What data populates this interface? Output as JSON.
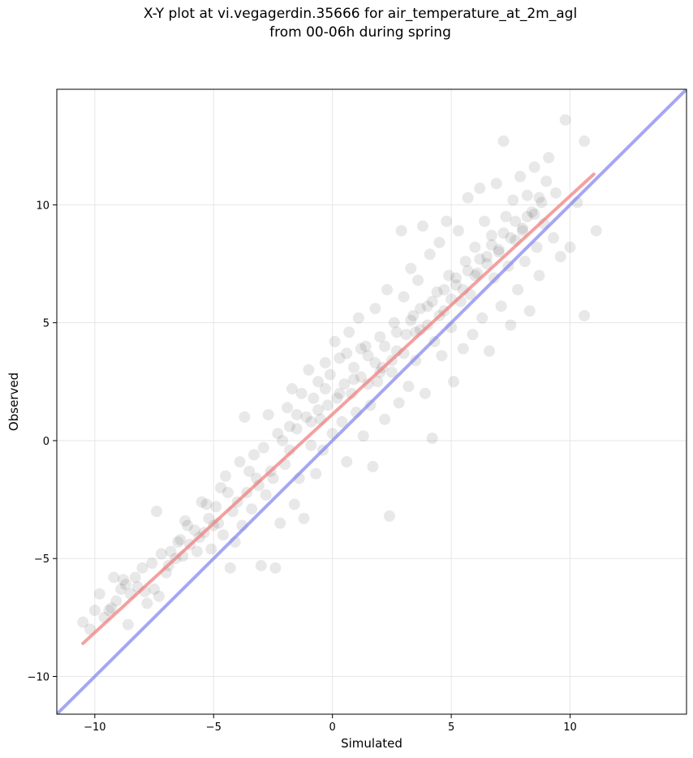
{
  "title_line1": "X-Y plot at vi.vegagerdin.35666 for air_temperature_at_2m_agl",
  "title_line2": "from 00-06h during spring",
  "chart_data": {
    "type": "scatter",
    "xlabel": "Simulated",
    "ylabel": "Observed",
    "xlim": [
      -11.6,
      14.9
    ],
    "ylim": [
      -11.6,
      14.9
    ],
    "xticks": [
      -10,
      -5,
      0,
      5,
      10
    ],
    "yticks": [
      -10,
      -5,
      0,
      5,
      10
    ],
    "xtick_labels": [
      "−10",
      "−5",
      "0",
      "5",
      "10"
    ],
    "ytick_labels": [
      "−10",
      "−5",
      "0",
      "5",
      "10"
    ],
    "grid": true,
    "colors": {
      "points": "#000000",
      "fit_line": "#f08080",
      "identity_line": "#8080f0",
      "frame": "#000000",
      "grid": "#e6e6e6"
    },
    "fit_line": {
      "x": [
        -10.5,
        11.0
      ],
      "y": [
        -8.6,
        11.3
      ]
    },
    "identity_line": {
      "x": [
        -11.6,
        14.9
      ],
      "y": [
        -11.6,
        14.9
      ]
    },
    "point_alpha": 0.09,
    "points": [
      [
        -10.5,
        -7.7
      ],
      [
        -10.2,
        -8.0
      ],
      [
        -10.0,
        -7.2
      ],
      [
        -9.8,
        -6.5
      ],
      [
        -9.6,
        -7.5
      ],
      [
        -9.4,
        -7.2
      ],
      [
        -9.2,
        -5.8
      ],
      [
        -9.1,
        -6.8
      ],
      [
        -8.9,
        -6.3
      ],
      [
        -8.7,
        -6.1
      ],
      [
        -8.6,
        -7.8
      ],
      [
        -8.5,
        -6.5
      ],
      [
        -8.3,
        -5.8
      ],
      [
        -8.2,
        -6.2
      ],
      [
        -8.0,
        -5.4
      ],
      [
        -7.8,
        -6.9
      ],
      [
        -7.6,
        -5.2
      ],
      [
        -7.5,
        -6.3
      ],
      [
        -7.4,
        -3.0
      ],
      [
        -7.2,
        -4.8
      ],
      [
        -7.0,
        -5.6
      ],
      [
        -6.8,
        -4.7
      ],
      [
        -6.6,
        -5.0
      ],
      [
        -6.5,
        -4.3
      ],
      [
        -6.3,
        -4.9
      ],
      [
        -6.1,
        -3.6
      ],
      [
        -6.0,
        -4.4
      ],
      [
        -5.8,
        -3.8
      ],
      [
        -5.6,
        -4.1
      ],
      [
        -5.5,
        -2.6
      ],
      [
        -5.4,
        -3.9
      ],
      [
        -5.2,
        -3.3
      ],
      [
        -5.1,
        -4.6
      ],
      [
        -4.9,
        -2.8
      ],
      [
        -4.8,
        -3.5
      ],
      [
        -4.6,
        -4.0
      ],
      [
        -4.5,
        -1.5
      ],
      [
        -4.4,
        -2.2
      ],
      [
        -4.3,
        -5.4
      ],
      [
        -4.2,
        -3.0
      ],
      [
        -4.0,
        -2.6
      ],
      [
        -3.9,
        -0.9
      ],
      [
        -3.8,
        -3.6
      ],
      [
        -3.7,
        1.0
      ],
      [
        -3.5,
        -1.3
      ],
      [
        -3.4,
        -2.9
      ],
      [
        -3.3,
        -0.6
      ],
      [
        -3.1,
        -1.9
      ],
      [
        -3.0,
        -5.3
      ],
      [
        -2.9,
        -0.3
      ],
      [
        -2.8,
        -2.3
      ],
      [
        -2.7,
        1.1
      ],
      [
        -2.5,
        -1.6
      ],
      [
        -2.4,
        -5.4
      ],
      [
        -2.3,
        0.3
      ],
      [
        -2.2,
        -3.5
      ],
      [
        -2.0,
        -1.0
      ],
      [
        -1.9,
        1.4
      ],
      [
        -1.8,
        -0.4
      ],
      [
        -1.7,
        2.2
      ],
      [
        -1.6,
        -2.7
      ],
      [
        -1.5,
        0.5
      ],
      [
        -1.4,
        -1.6
      ],
      [
        -1.3,
        2.0
      ],
      [
        -1.2,
        -3.3
      ],
      [
        -1.1,
        1.0
      ],
      [
        -1.0,
        3.0
      ],
      [
        -0.9,
        -0.2
      ],
      [
        -0.8,
        1.8
      ],
      [
        -0.7,
        -1.4
      ],
      [
        -0.6,
        2.5
      ],
      [
        -0.5,
        0.9
      ],
      [
        -0.4,
        -0.4
      ],
      [
        -0.3,
        3.3
      ],
      [
        -0.2,
        1.5
      ],
      [
        -0.1,
        2.8
      ],
      [
        0.0,
        0.3
      ],
      [
        0.1,
        4.2
      ],
      [
        0.2,
        1.8
      ],
      [
        0.3,
        3.5
      ],
      [
        0.4,
        0.8
      ],
      [
        0.5,
        2.4
      ],
      [
        0.6,
        -0.9
      ],
      [
        0.7,
        4.6
      ],
      [
        0.8,
        2.0
      ],
      [
        0.9,
        3.1
      ],
      [
        1.0,
        1.2
      ],
      [
        1.1,
        5.2
      ],
      [
        1.2,
        2.7
      ],
      [
        1.3,
        0.2
      ],
      [
        1.4,
        4.0
      ],
      [
        1.5,
        3.6
      ],
      [
        1.6,
        1.5
      ],
      [
        1.7,
        -1.1
      ],
      [
        1.8,
        5.6
      ],
      [
        1.9,
        2.5
      ],
      [
        2.0,
        4.4
      ],
      [
        2.1,
        3.1
      ],
      [
        2.2,
        0.9
      ],
      [
        2.3,
        6.4
      ],
      [
        2.4,
        -3.2
      ],
      [
        2.5,
        2.9
      ],
      [
        2.6,
        5.0
      ],
      [
        2.7,
        3.8
      ],
      [
        2.8,
        1.6
      ],
      [
        2.9,
        8.9
      ],
      [
        3.0,
        6.1
      ],
      [
        3.1,
        4.5
      ],
      [
        3.2,
        2.3
      ],
      [
        3.3,
        7.3
      ],
      [
        3.4,
        5.3
      ],
      [
        3.5,
        3.4
      ],
      [
        3.6,
        6.8
      ],
      [
        3.7,
        4.7
      ],
      [
        3.8,
        9.1
      ],
      [
        3.9,
        2.0
      ],
      [
        4.0,
        5.7
      ],
      [
        4.1,
        7.9
      ],
      [
        4.2,
        0.1
      ],
      [
        4.3,
        4.2
      ],
      [
        4.4,
        6.3
      ],
      [
        4.5,
        8.4
      ],
      [
        4.6,
        3.6
      ],
      [
        4.7,
        5.5
      ],
      [
        4.8,
        9.3
      ],
      [
        4.9,
        7.0
      ],
      [
        5.0,
        4.8
      ],
      [
        5.1,
        2.5
      ],
      [
        5.2,
        6.6
      ],
      [
        5.3,
        8.9
      ],
      [
        5.4,
        5.9
      ],
      [
        5.5,
        3.9
      ],
      [
        5.6,
        7.6
      ],
      [
        5.7,
        10.3
      ],
      [
        5.8,
        6.2
      ],
      [
        5.9,
        4.5
      ],
      [
        6.0,
        8.2
      ],
      [
        6.1,
        7.1
      ],
      [
        6.2,
        10.7
      ],
      [
        6.3,
        5.2
      ],
      [
        6.4,
        9.3
      ],
      [
        6.5,
        7.8
      ],
      [
        6.6,
        3.8
      ],
      [
        6.7,
        8.7
      ],
      [
        6.8,
        6.9
      ],
      [
        6.9,
        10.9
      ],
      [
        7.0,
        8.0
      ],
      [
        7.1,
        5.7
      ],
      [
        7.2,
        12.7
      ],
      [
        7.3,
        9.5
      ],
      [
        7.4,
        7.4
      ],
      [
        7.5,
        4.9
      ],
      [
        7.6,
        10.2
      ],
      [
        7.7,
        8.5
      ],
      [
        7.8,
        6.4
      ],
      [
        7.9,
        11.2
      ],
      [
        8.0,
        9.0
      ],
      [
        8.1,
        7.6
      ],
      [
        8.2,
        10.4
      ],
      [
        8.3,
        5.5
      ],
      [
        8.4,
        9.7
      ],
      [
        8.5,
        11.6
      ],
      [
        8.6,
        8.2
      ],
      [
        8.7,
        7.0
      ],
      [
        8.8,
        10.1
      ],
      [
        8.9,
        9.2
      ],
      [
        9.0,
        11.0
      ],
      [
        9.1,
        12.0
      ],
      [
        9.3,
        8.6
      ],
      [
        9.4,
        10.5
      ],
      [
        9.6,
        7.8
      ],
      [
        9.8,
        13.6
      ],
      [
        10.0,
        8.2
      ],
      [
        10.3,
        10.1
      ],
      [
        10.6,
        12.7
      ],
      [
        10.6,
        5.3
      ],
      [
        11.1,
        8.9
      ],
      [
        -9.3,
        -7.1
      ],
      [
        -8.8,
        -5.9
      ],
      [
        -7.9,
        -6.4
      ],
      [
        -6.9,
        -5.3
      ],
      [
        -6.2,
        -3.4
      ],
      [
        -5.7,
        -4.7
      ],
      [
        -5.0,
        -3.6
      ],
      [
        -4.1,
        -4.3
      ],
      [
        -3.6,
        -2.2
      ],
      [
        -2.6,
        -1.3
      ],
      [
        -2.1,
        0.0
      ],
      [
        -1.5,
        1.1
      ],
      [
        -0.9,
        0.8
      ],
      [
        -0.3,
        2.2
      ],
      [
        0.3,
        2.0
      ],
      [
        0.9,
        2.6
      ],
      [
        1.5,
        2.4
      ],
      [
        2.0,
        2.9
      ],
      [
        2.5,
        3.4
      ],
      [
        3.0,
        3.7
      ],
      [
        3.5,
        4.6
      ],
      [
        4.0,
        4.9
      ],
      [
        4.5,
        5.3
      ],
      [
        5.0,
        6.0
      ],
      [
        5.5,
        6.4
      ],
      [
        6.0,
        7.0
      ],
      [
        6.5,
        7.5
      ],
      [
        7.0,
        8.1
      ],
      [
        7.5,
        8.6
      ],
      [
        8.0,
        8.9
      ],
      [
        8.5,
        9.6
      ],
      [
        -7.3,
        -6.6
      ],
      [
        -6.4,
        -4.2
      ],
      [
        -5.3,
        -2.7
      ],
      [
        -4.7,
        -2.0
      ],
      [
        -3.2,
        -1.6
      ],
      [
        -1.8,
        0.6
      ],
      [
        -0.6,
        1.3
      ],
      [
        0.6,
        3.7
      ],
      [
        1.2,
        3.9
      ],
      [
        1.8,
        3.3
      ],
      [
        2.2,
        4.0
      ],
      [
        2.7,
        4.6
      ],
      [
        3.3,
        5.1
      ],
      [
        3.7,
        5.6
      ],
      [
        4.2,
        5.9
      ],
      [
        4.7,
        6.4
      ],
      [
        5.2,
        6.9
      ],
      [
        5.7,
        7.2
      ],
      [
        6.2,
        7.7
      ],
      [
        6.7,
        8.3
      ],
      [
        7.2,
        8.8
      ],
      [
        7.7,
        9.3
      ],
      [
        8.2,
        9.5
      ],
      [
        8.7,
        10.3
      ]
    ]
  }
}
